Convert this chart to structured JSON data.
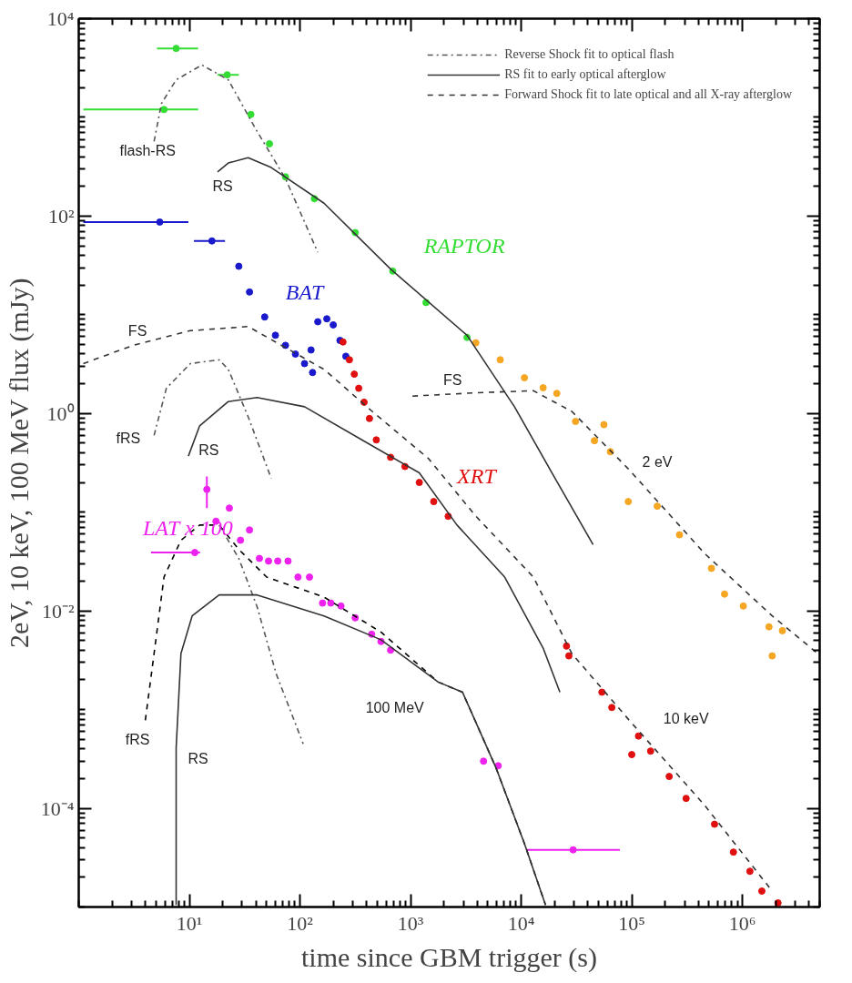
{
  "chart_data": {
    "type": "scatter",
    "xlabel": "time since GBM trigger (s)",
    "ylabel": "2eV, 10 keV, 100 MeV flux (mJy)",
    "log": "xy",
    "xlim": [
      1,
      5000000
    ],
    "ylim": [
      1e-05,
      10000
    ],
    "xticks": [
      {
        "value": 10,
        "label": "10¹"
      },
      {
        "value": 100,
        "label": "10²"
      },
      {
        "value": 1000,
        "label": "10³"
      },
      {
        "value": 10000,
        "label": "10⁴"
      },
      {
        "value": 100000,
        "label": "10⁵"
      },
      {
        "value": 1000000,
        "label": "10⁶"
      }
    ],
    "yticks": [
      {
        "value": 0.0001,
        "label": "10⁻⁴"
      },
      {
        "value": 0.01,
        "label": "10⁻²"
      },
      {
        "value": 1,
        "label": "10⁰"
      },
      {
        "value": 100,
        "label": "10²"
      },
      {
        "value": 10000,
        "label": "10⁴"
      }
    ],
    "grid": false,
    "legend": "top right",
    "series": [
      {
        "name": "RAPTOR",
        "marker": "circle",
        "color": "#33dd33",
        "x": [
          7.6,
          5.9,
          22,
          36,
          53,
          74,
          135,
          316,
          690,
          1380,
          3240
        ],
        "values": [
          5000,
          1200,
          2700,
          1070,
          540,
          250,
          150,
          68,
          27.7,
          13.3,
          5.9
        ],
        "xerrors": [
          [
            5.1,
            12
          ],
          [
            1.1,
            12
          ],
          [
            18,
            28
          ],
          null,
          null,
          null,
          null,
          null,
          null,
          null,
          null
        ]
      },
      {
        "marker": "circle",
        "color": "#f5a623",
        "x": [
          3890,
          6470,
          10700,
          15800,
          21000,
          31000,
          46000,
          56000,
          64000,
          93000,
          170000,
          270000,
          525000,
          690000,
          1020000,
          1740000,
          1860000,
          2300000
        ],
        "values": [
          5.2,
          3.5,
          2.3,
          1.82,
          1.6,
          0.83,
          0.53,
          0.77,
          0.41,
          0.128,
          0.115,
          0.059,
          0.027,
          0.0148,
          0.0112,
          0.0069,
          0.0035,
          0.0063
        ]
      },
      {
        "name": "BAT",
        "marker": "circle",
        "color": "#1a1acc",
        "x": [
          5.4,
          16,
          28,
          35,
          48,
          60,
          74,
          91,
          110,
          126,
          130,
          145,
          175,
          200,
          230,
          260
        ],
        "values": [
          87,
          56,
          31,
          17,
          9.5,
          6.2,
          4.9,
          4,
          3.2,
          4.4,
          2.6,
          8.5,
          9.1,
          7.9,
          5.5,
          3.8
        ],
        "xerrors": [
          [
            1.1,
            9.8
          ],
          [
            11,
            21
          ],
          null,
          null,
          null,
          null,
          null,
          null,
          null,
          null,
          null,
          null,
          null,
          null,
          null,
          null
        ]
      },
      {
        "name": "XRT",
        "marker": "circle",
        "color": "#e01010",
        "x": [
          245,
          280,
          310,
          340,
          380,
          425,
          490,
          660,
          890,
          1200,
          1620,
          2190,
          25700,
          27000,
          53700,
          66000,
          100000,
          115000,
          148000,
          218000,
          310000,
          560000,
          830000,
          1170000,
          1500000,
          2100000
        ],
        "values": [
          5.3,
          3.5,
          2.5,
          1.8,
          1.3,
          0.89,
          0.54,
          0.36,
          0.29,
          0.2,
          0.128,
          0.091,
          0.0044,
          0.0035,
          0.0015,
          0.00105,
          0.00035,
          0.00054,
          0.00038,
          0.00021,
          0.000126,
          6.9e-05,
          3.6e-05,
          2.3e-05,
          1.45e-05,
          1.1e-05
        ]
      },
      {
        "name": "LAT x 100",
        "marker": "circle",
        "color": "#ee22ee",
        "x": [
          14.4,
          11.2,
          17.4,
          23,
          29,
          35,
          43,
          52,
          63,
          78,
          96,
          122,
          160,
          190,
          235,
          316,
          445,
          540,
          660,
          4570,
          6200,
          29500
        ],
        "values": [
          0.17,
          0.039,
          0.081,
          0.11,
          0.052,
          0.066,
          0.034,
          0.032,
          0.032,
          0.032,
          0.022,
          0.022,
          0.012,
          0.012,
          0.0112,
          0.0085,
          0.0058,
          0.0049,
          0.004,
          0.0003,
          0.00027,
          3.8e-05
        ],
        "errors": [
          [
            0.11,
            0.23
          ],
          null,
          null,
          null,
          null,
          null,
          null,
          null,
          null,
          null,
          null,
          null,
          null,
          null,
          null,
          null,
          null,
          null,
          null,
          null,
          null,
          null
        ],
        "xerrors": [
          null,
          [
            4.5,
            12.5
          ],
          null,
          null,
          null,
          null,
          null,
          null,
          null,
          null,
          null,
          null,
          null,
          null,
          null,
          null,
          null,
          null,
          null,
          null,
          null,
          [
            11200,
            78000
          ]
        ]
      },
      {
        "name": "Reverse Shock fit to optical flash",
        "type": "line",
        "line_style": "dashdot",
        "color": "#555555",
        "x": [
          4.8,
          5.6,
          7.6,
          13,
          22.5,
          41,
          74,
          145
        ],
        "values": [
          570,
          1380,
          2400,
          3390,
          2400,
          720,
          240,
          43
        ]
      },
      {
        "name": "RS fit to early optical afterglow",
        "type": "line",
        "line_style": "solid",
        "color": "#333333",
        "x": [
          18,
          22.5,
          34,
          55,
          165,
          660,
          3240,
          8700,
          19000,
          44700
        ],
        "values": [
          280,
          345,
          390,
          310,
          135,
          29,
          6.2,
          1.17,
          0.25,
          0.047
        ]
      },
      {
        "name": "Forward Shock fit to late optical and all X-ray afterglow",
        "type": "line",
        "line_style": "dashed",
        "color": "#333333",
        "x": [
          1.1,
          3.1,
          10.2,
          34,
          165,
          450,
          1450,
          3900,
          12900,
          28700,
          93000,
          457000,
          1860000
        ],
        "values": [
          3.2,
          4.9,
          6.9,
          7.6,
          2.8,
          1.05,
          0.35,
          0.091,
          0.022,
          0.0037,
          0.0008,
          0.000107,
          1.45e-05
        ]
      },
      {
        "type": "line",
        "line_style": "dashed",
        "color": "#333333",
        "x": [
          1040,
          3900,
          12900,
          28700,
          93000,
          457000,
          1860000,
          4800000
        ],
        "values": [
          1.5,
          1.62,
          1.7,
          1.05,
          0.275,
          0.038,
          0.0089,
          0.0037
        ]
      },
      {
        "type": "line",
        "line_style": "dashdot",
        "color": "#555555",
        "x": [
          4.8,
          6.2,
          10.2,
          18.6,
          22.5,
          34,
          55
        ],
        "values": [
          0.6,
          1.8,
          3.2,
          3.5,
          2.8,
          0.93,
          0.22
        ]
      },
      {
        "type": "line",
        "line_style": "solid",
        "color": "#333333",
        "x": [
          9.8,
          12.4,
          22.5,
          41,
          110,
          363,
          1200,
          2630,
          7100,
          15800,
          22400
        ],
        "values": [
          0.37,
          0.75,
          1.32,
          1.45,
          1.17,
          0.54,
          0.25,
          0.074,
          0.022,
          0.0042,
          0.0015
        ]
      },
      {
        "type": "line",
        "line_style": "dashed",
        "color": "#000000",
        "x": [
          4,
          4.8,
          5.9,
          8.4,
          12.4,
          18.6,
          28,
          50,
          165,
          540,
          1780,
          2950,
          5900,
          10700,
          16600
        ],
        "values": [
          0.00078,
          0.0037,
          0.022,
          0.052,
          0.074,
          0.074,
          0.042,
          0.022,
          0.0138,
          0.0061,
          0.0019,
          0.0015,
          0.00026,
          4.4e-05,
          1.05e-05
        ]
      },
      {
        "type": "line",
        "line_style": "dashdot",
        "color": "#555555",
        "x": [
          18.6,
          28,
          41,
          61,
          107
        ],
        "values": [
          0.074,
          0.034,
          0.011,
          0.0023,
          0.00045
        ]
      },
      {
        "type": "line",
        "line_style": "solid",
        "color": "#333333",
        "x": [
          7.6,
          7.6,
          8.4,
          10.6,
          18.6,
          41,
          165,
          540,
          1780,
          2950,
          5900,
          10700,
          16600
        ],
        "values": [
          1.05e-05,
          0.00041,
          0.0037,
          0.0089,
          0.0145,
          0.0145,
          0.0089,
          0.0051,
          0.0019,
          0.0015,
          0.00026,
          4.4e-05,
          1.05e-05
        ]
      }
    ],
    "annotations": [
      "flash-RS",
      "RS",
      "FS",
      "FS",
      "fRS",
      "RS",
      "2 eV",
      "100 MeV",
      "10 keV",
      "fRS",
      "RS"
    ]
  }
}
